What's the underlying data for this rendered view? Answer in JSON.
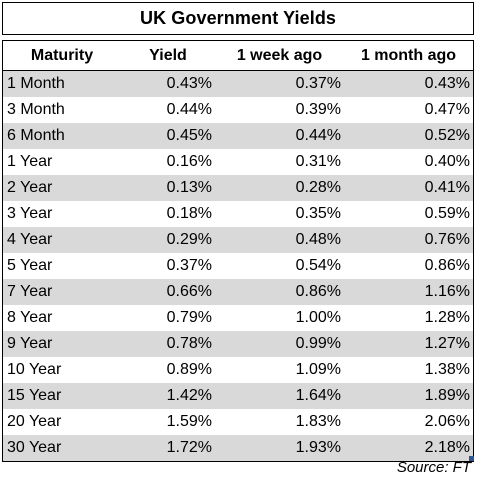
{
  "title": "UK Government Yields",
  "headers": [
    "Maturity",
    "Yield",
    "1 week ago",
    "1 month ago"
  ],
  "rows": [
    [
      "1 Month",
      "0.43%",
      "0.37%",
      "0.43%"
    ],
    [
      "3 Month",
      "0.44%",
      "0.39%",
      "0.47%"
    ],
    [
      "6 Month",
      "0.45%",
      "0.44%",
      "0.52%"
    ],
    [
      "1 Year",
      "0.16%",
      "0.31%",
      "0.40%"
    ],
    [
      "2 Year",
      "0.13%",
      "0.28%",
      "0.41%"
    ],
    [
      "3 Year",
      "0.18%",
      "0.35%",
      "0.59%"
    ],
    [
      "4 Year",
      "0.29%",
      "0.48%",
      "0.76%"
    ],
    [
      "5 Year",
      "0.37%",
      "0.54%",
      "0.86%"
    ],
    [
      "7 Year",
      "0.66%",
      "0.86%",
      "1.16%"
    ],
    [
      "8 Year",
      "0.79%",
      "1.00%",
      "1.28%"
    ],
    [
      "9 Year",
      "0.78%",
      "0.99%",
      "1.27%"
    ],
    [
      "10 Year",
      "0.89%",
      "1.09%",
      "1.38%"
    ],
    [
      "15 Year",
      "1.42%",
      "1.64%",
      "1.89%"
    ],
    [
      "20 Year",
      "1.59%",
      "1.83%",
      "2.06%"
    ],
    [
      "30 Year",
      "1.72%",
      "1.93%",
      "2.18%"
    ]
  ],
  "source": "Source: FT",
  "colors": {
    "shade": "#d9d9d9",
    "handle": "#2f5597"
  }
}
